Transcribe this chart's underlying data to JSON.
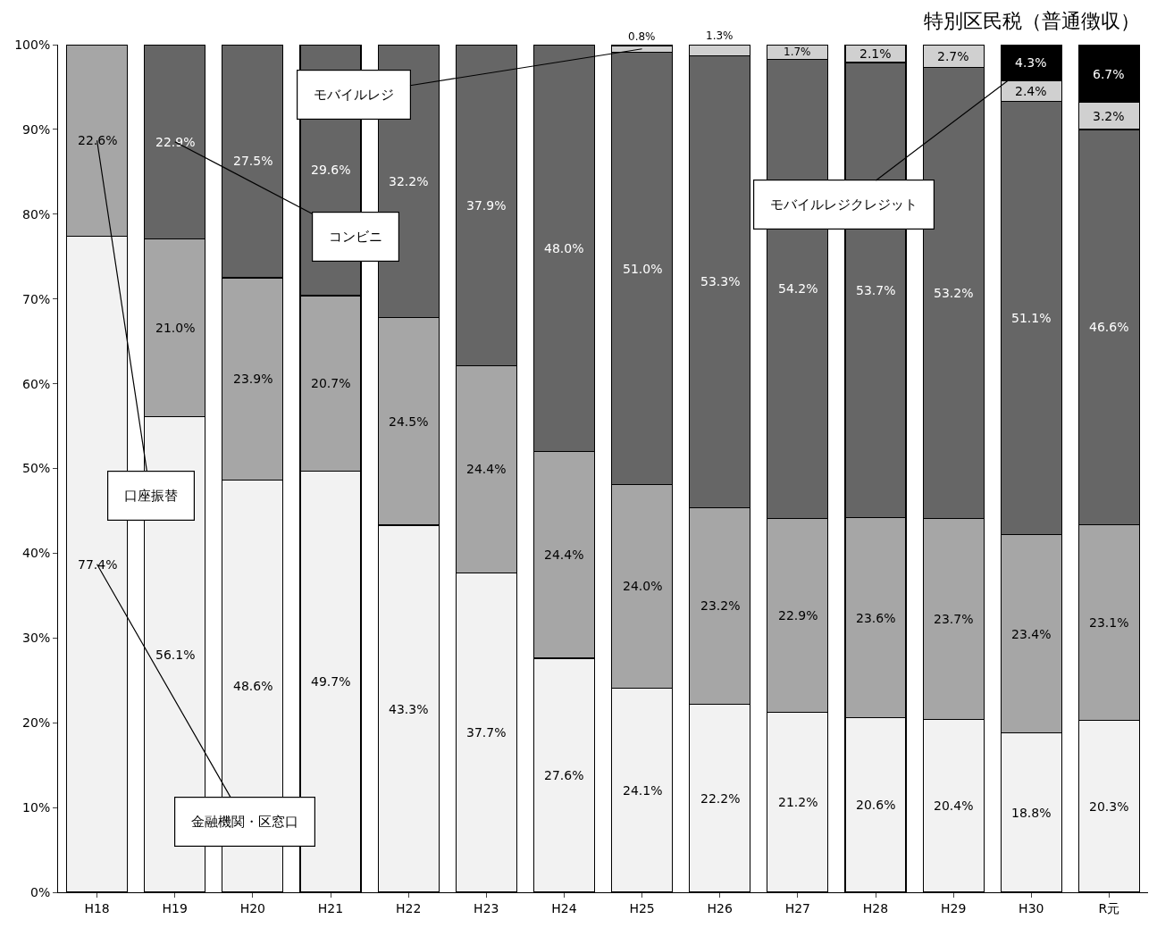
{
  "chart_data": {
    "type": "bar",
    "stacked": true,
    "title": "特別区民税（普通徴収）",
    "categories": [
      "H18",
      "H19",
      "H20",
      "H21",
      "H22",
      "H23",
      "H24",
      "H25",
      "H26",
      "H27",
      "H28",
      "H29",
      "H30",
      "R元"
    ],
    "series": [
      {
        "name": "金融機関・区窓口",
        "color": "#f2f2f2",
        "values": [
          77.4,
          56.1,
          48.6,
          49.7,
          43.3,
          37.7,
          27.6,
          24.1,
          22.2,
          21.2,
          20.6,
          20.4,
          18.8,
          20.3
        ],
        "value_labels": [
          "77.4%",
          "56.1%",
          "48.6%",
          "49.7%",
          "43.3%",
          "37.7%",
          "27.6%",
          "24.1%",
          "22.2%",
          "21.2%",
          "20.6%",
          "20.4%",
          "18.8%",
          "20.3%"
        ]
      },
      {
        "name": "口座振替",
        "color": "#a6a6a6",
        "values": [
          22.6,
          21.0,
          23.9,
          20.7,
          24.5,
          24.4,
          24.4,
          24.0,
          23.2,
          22.9,
          23.6,
          23.7,
          23.4,
          23.1
        ],
        "value_labels": [
          "22.6%",
          "21.0%",
          "23.9%",
          "20.7%",
          "24.5%",
          "24.4%",
          "24.4%",
          "24.0%",
          "23.2%",
          "22.9%",
          "23.6%",
          "23.7%",
          "23.4%",
          "23.1%"
        ]
      },
      {
        "name": "コンビニ",
        "color": "#666666",
        "values": [
          null,
          22.9,
          27.5,
          29.6,
          32.2,
          37.9,
          48.0,
          51.0,
          53.3,
          54.2,
          53.7,
          53.2,
          51.1,
          46.6
        ],
        "value_labels": [
          null,
          "22.9%",
          "27.5%",
          "29.6%",
          "32.2%",
          "37.9%",
          "48.0%",
          "51.0%",
          "53.3%",
          "54.2%",
          "53.7%",
          "53.2%",
          "51.1%",
          "46.6%"
        ]
      },
      {
        "name": "モバイルレジ",
        "color": "#d0d0d0",
        "values": [
          null,
          null,
          null,
          null,
          null,
          null,
          null,
          0.8,
          1.3,
          1.7,
          2.1,
          2.7,
          2.4,
          3.2
        ],
        "value_labels": [
          null,
          null,
          null,
          null,
          null,
          null,
          null,
          "0.8%",
          "1.3%",
          "1.7%",
          "2.1%",
          "2.7%",
          "2.4%",
          "3.2%"
        ]
      },
      {
        "name": "モバイルレジクレジット",
        "color": "#000000",
        "values": [
          null,
          null,
          null,
          null,
          null,
          null,
          null,
          null,
          null,
          null,
          null,
          null,
          4.3,
          6.7
        ],
        "value_labels": [
          null,
          null,
          null,
          null,
          null,
          null,
          null,
          null,
          null,
          null,
          null,
          null,
          "4.3%",
          "6.7%"
        ]
      }
    ],
    "ylim": [
      0,
      100
    ],
    "yticks": [
      {
        "value": 0,
        "label": "0%"
      },
      {
        "value": 10,
        "label": "10%"
      },
      {
        "value": 20,
        "label": "20%"
      },
      {
        "value": 30,
        "label": "30%"
      },
      {
        "value": 40,
        "label": "40%"
      },
      {
        "value": 50,
        "label": "50%"
      },
      {
        "value": 60,
        "label": "60%"
      },
      {
        "value": 70,
        "label": "70%"
      },
      {
        "value": 80,
        "label": "80%"
      },
      {
        "value": 90,
        "label": "90%"
      },
      {
        "value": 100,
        "label": "100%"
      }
    ],
    "grid": false,
    "legend": false
  }
}
